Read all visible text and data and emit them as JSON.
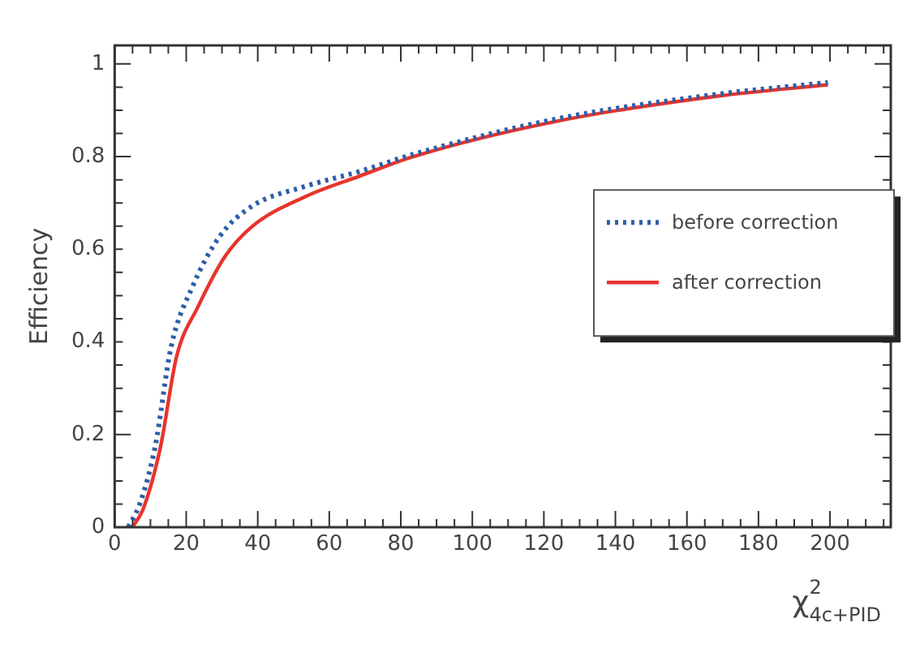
{
  "chart_data": {
    "type": "line",
    "xlabel": "χ$^{2}$$_{4c+PID}$",
    "ylabel": "Efficiency",
    "xlim": [
      0,
      217
    ],
    "xticks": [
      0,
      20,
      40,
      60,
      80,
      100,
      120,
      140,
      160,
      180,
      200
    ],
    "ylim": [
      0,
      1.04
    ],
    "yticks": [
      0,
      0.2,
      0.4,
      0.6,
      0.8,
      1
    ],
    "grid": false,
    "legend": "right",
    "marker": "none",
    "series": [
      {
        "name": "before correction",
        "color": "#2e5fa8",
        "line_style": "dotted",
        "x": [
          3.8,
          7,
          11.3,
          15.8,
          21.8,
          29.3,
          38.4,
          53.4,
          68.5,
          83.5,
          124,
          169,
          199.4
        ],
        "values": [
          0,
          0.05,
          0.173,
          0.39,
          0.52,
          0.627,
          0.693,
          0.736,
          0.768,
          0.805,
          0.882,
          0.935,
          0.96
        ]
      },
      {
        "name": "after correction",
        "color": "#e8342c",
        "line_style": "solid",
        "x": [
          5,
          8,
          12.8,
          17.3,
          23.3,
          30.8,
          38.4,
          53.4,
          68.5,
          83.5,
          124,
          169,
          199.4
        ],
        "values": [
          0,
          0.04,
          0.173,
          0.368,
          0.476,
          0.584,
          0.649,
          0.714,
          0.758,
          0.8,
          0.877,
          0.931,
          0.955
        ]
      }
    ]
  }
}
